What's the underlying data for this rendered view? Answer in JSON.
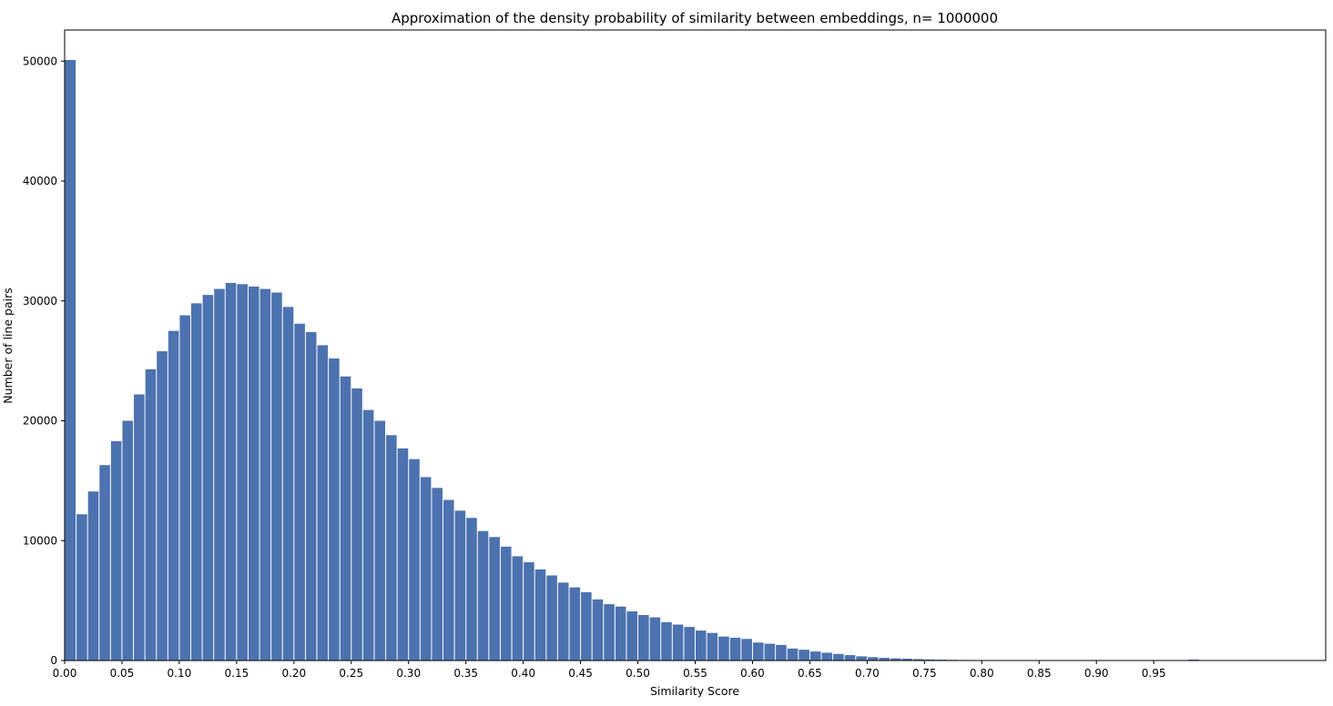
{
  "colors": {
    "bar": "#4c72b0",
    "axis": "#000000",
    "background": "#ffffff"
  },
  "chart_data": {
    "type": "bar",
    "title": "Approximation of the density probability of similarity between embeddings, n= 1000000",
    "xlabel": "Similarity Score",
    "ylabel": "Number of line pairs",
    "bin_width": 0.01,
    "xlim": [
      0.0,
      1.1
    ],
    "ylim": [
      0,
      52600
    ],
    "grid": false,
    "legend": "none",
    "xticks": [
      0.0,
      0.05,
      0.1,
      0.15,
      0.2,
      0.25,
      0.3,
      0.35,
      0.4,
      0.45,
      0.5,
      0.55,
      0.6,
      0.65,
      0.7,
      0.75,
      0.8,
      0.85,
      0.9,
      0.95
    ],
    "xtick_labels": [
      "0.00",
      "0.05",
      "0.10",
      "0.15",
      "0.20",
      "0.25",
      "0.30",
      "0.35",
      "0.40",
      "0.45",
      "0.50",
      "0.55",
      "0.60",
      "0.65",
      "0.70",
      "0.75",
      "0.80",
      "0.85",
      "0.90",
      "0.95"
    ],
    "yticks": [
      0,
      10000,
      20000,
      30000,
      40000,
      50000
    ],
    "ytick_labels": [
      "0",
      "10000",
      "20000",
      "30000",
      "40000",
      "50000"
    ],
    "bin_starts": [
      0.0,
      0.01,
      0.02,
      0.03,
      0.04,
      0.05,
      0.06,
      0.07,
      0.08,
      0.09,
      0.1,
      0.11,
      0.12,
      0.13,
      0.14,
      0.15,
      0.16,
      0.17,
      0.18,
      0.19,
      0.2,
      0.21,
      0.22,
      0.23,
      0.24,
      0.25,
      0.26,
      0.27,
      0.28,
      0.29,
      0.3,
      0.31,
      0.32,
      0.33,
      0.34,
      0.35,
      0.36,
      0.37,
      0.38,
      0.39,
      0.4,
      0.41,
      0.42,
      0.43,
      0.44,
      0.45,
      0.46,
      0.47,
      0.48,
      0.49,
      0.5,
      0.51,
      0.52,
      0.53,
      0.54,
      0.55,
      0.56,
      0.57,
      0.58,
      0.59,
      0.6,
      0.61,
      0.62,
      0.63,
      0.64,
      0.65,
      0.66,
      0.67,
      0.68,
      0.69,
      0.7,
      0.71,
      0.72,
      0.73,
      0.74,
      0.75,
      0.76,
      0.77,
      0.78,
      0.79,
      0.8,
      0.81,
      0.82,
      0.83,
      0.84,
      0.85,
      0.86,
      0.87,
      0.88,
      0.89,
      0.9,
      0.91,
      0.92,
      0.93,
      0.94,
      0.95,
      0.96,
      0.97,
      0.98,
      0.99
    ],
    "values": [
      50100,
      12200,
      14100,
      16300,
      18300,
      20000,
      22200,
      24300,
      25800,
      27500,
      28800,
      29800,
      30500,
      31000,
      31500,
      31400,
      31200,
      31000,
      30700,
      29500,
      28100,
      27400,
      26300,
      25200,
      23700,
      22700,
      20900,
      20000,
      18800,
      17700,
      16800,
      15300,
      14400,
      13400,
      12500,
      11900,
      10800,
      10300,
      9500,
      8700,
      8200,
      7600,
      7100,
      6500,
      6100,
      5700,
      5100,
      4700,
      4500,
      4100,
      3800,
      3600,
      3200,
      3000,
      2800,
      2500,
      2300,
      2000,
      1900,
      1800,
      1500,
      1400,
      1300,
      1000,
      900,
      750,
      650,
      550,
      450,
      350,
      280,
      220,
      180,
      150,
      120,
      90,
      70,
      55,
      45,
      35,
      25,
      20,
      15,
      12,
      10,
      8,
      6,
      5,
      4,
      3,
      3,
      2,
      2,
      2,
      2,
      2,
      3,
      4,
      80,
      10
    ]
  }
}
